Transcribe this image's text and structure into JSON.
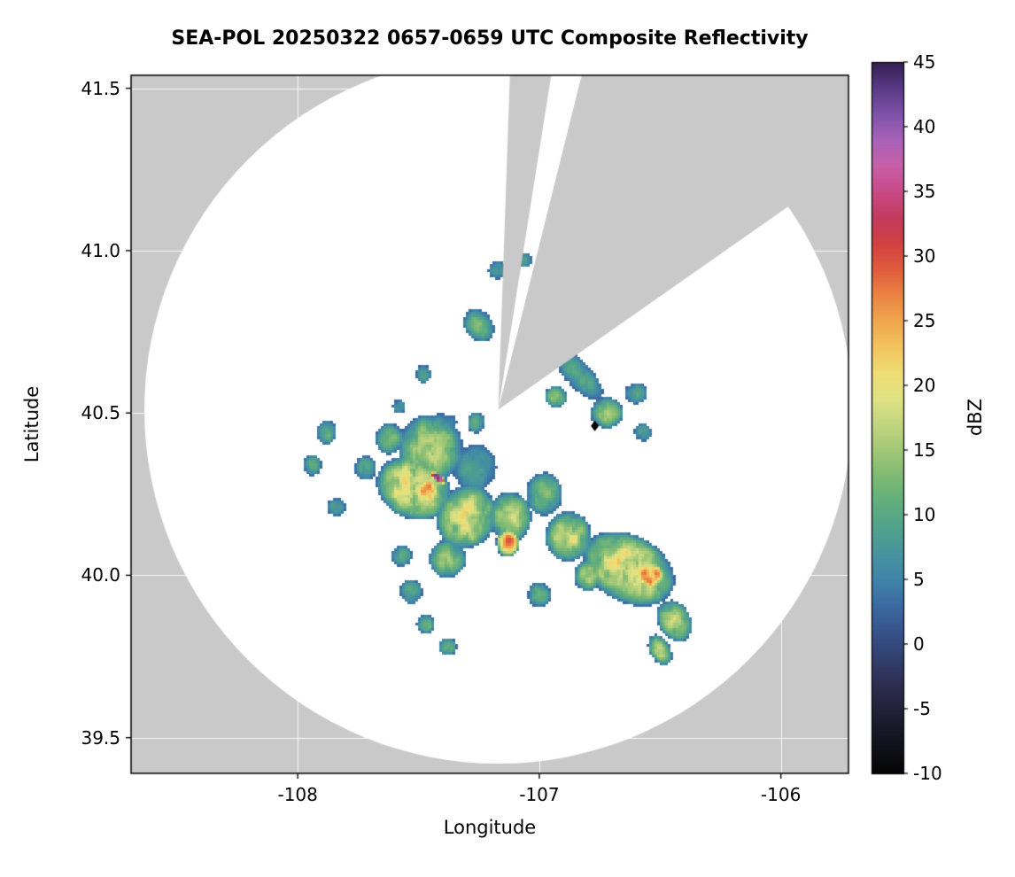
{
  "chart_data": {
    "type": "heatmap",
    "title": "SEA-POL 20250322 0657-0659 UTC Composite Reflectivity",
    "xlabel": "Longitude",
    "ylabel": "Latitude",
    "xlim": [
      -108.69,
      -105.72
    ],
    "ylim": [
      39.39,
      41.54
    ],
    "x_ticks": [
      -108,
      -107,
      -106
    ],
    "x_tick_labels": [
      "-108",
      "-107",
      "-106"
    ],
    "y_ticks": [
      39.5,
      40.0,
      40.5,
      41.0,
      41.5
    ],
    "y_tick_labels": [
      "39.5",
      "40.0",
      "40.5",
      "41.0",
      "41.5"
    ],
    "grid": true,
    "background_color": "#c9c9c9",
    "coverage_color": "#ffffff",
    "colorbar": {
      "label": "dBZ",
      "min": -10,
      "max": 45,
      "ticks": [
        -10,
        -5,
        0,
        5,
        10,
        15,
        20,
        25,
        30,
        35,
        40,
        45
      ],
      "tick_labels": [
        "-10",
        "-5",
        "0",
        "5",
        "10",
        "15",
        "20",
        "25",
        "30",
        "35",
        "40",
        "45"
      ],
      "stops": [
        [
          -10,
          "#050505"
        ],
        [
          -6,
          "#1c1b2e"
        ],
        [
          -3,
          "#2d2f52"
        ],
        [
          0,
          "#34497e"
        ],
        [
          3,
          "#3b6aa2"
        ],
        [
          5,
          "#3f84a8"
        ],
        [
          7,
          "#47949e"
        ],
        [
          9,
          "#51a28c"
        ],
        [
          11,
          "#62ae7d"
        ],
        [
          13,
          "#7fba74"
        ],
        [
          15,
          "#a2c878"
        ],
        [
          17,
          "#c2d57f"
        ],
        [
          19,
          "#e0e283"
        ],
        [
          21,
          "#efdd74"
        ],
        [
          23,
          "#f2c45e"
        ],
        [
          25,
          "#f0a64d"
        ],
        [
          27,
          "#ea8343"
        ],
        [
          29,
          "#e05c3d"
        ],
        [
          31,
          "#cf4141"
        ],
        [
          33,
          "#c23b5e"
        ],
        [
          35,
          "#c94a86"
        ],
        [
          37,
          "#c75fa8"
        ],
        [
          39,
          "#a862b8"
        ],
        [
          41,
          "#7e52a8"
        ],
        [
          43,
          "#5a3a86"
        ],
        [
          45,
          "#341f52"
        ]
      ]
    },
    "radar": {
      "center_lon": -107.17,
      "center_lat": 40.51,
      "range_lon_deg": 1.465,
      "blocked_sectors_deg": [
        [
          2,
          9
        ],
        [
          14,
          55
        ]
      ],
      "marker": {
        "lon": -106.77,
        "lat": 40.46,
        "shape": "diamond",
        "color": "#000000"
      }
    },
    "echoes": {
      "blob_format": "[lon, lat, rx_deg, ry_deg, rot_deg, peak_dbz]",
      "threshold_dbz": 2.5,
      "noise": {
        "seed": 7,
        "scale_deg": 0.035,
        "scale2_deg": 0.013,
        "base": 0.6,
        "amp": 0.8
      },
      "blobs": [
        [
          -107.45,
          40.39,
          0.14,
          0.11,
          0,
          15
        ],
        [
          -107.52,
          40.27,
          0.16,
          0.1,
          -10,
          20
        ],
        [
          -107.46,
          40.26,
          0.055,
          0.04,
          -15,
          29
        ],
        [
          -107.42,
          40.3,
          0.04,
          0.013,
          -25,
          40
        ],
        [
          -107.27,
          40.33,
          0.1,
          0.08,
          0,
          8
        ],
        [
          -107.62,
          40.42,
          0.06,
          0.05,
          0,
          12
        ],
        [
          -107.72,
          40.33,
          0.05,
          0.04,
          0,
          10
        ],
        [
          -107.3,
          40.18,
          0.13,
          0.1,
          10,
          18
        ],
        [
          -107.38,
          40.05,
          0.08,
          0.06,
          0,
          14
        ],
        [
          -107.13,
          40.1,
          0.05,
          0.045,
          0,
          28
        ],
        [
          -107.12,
          40.18,
          0.09,
          0.08,
          0,
          16
        ],
        [
          -106.98,
          40.25,
          0.08,
          0.07,
          0,
          12
        ],
        [
          -106.88,
          40.12,
          0.1,
          0.08,
          0,
          17
        ],
        [
          -106.63,
          40.02,
          0.2,
          0.11,
          -15,
          19
        ],
        [
          -106.54,
          40.0,
          0.06,
          0.045,
          0,
          27
        ],
        [
          -106.44,
          39.86,
          0.08,
          0.06,
          -30,
          16
        ],
        [
          -106.5,
          39.77,
          0.06,
          0.04,
          -40,
          14
        ],
        [
          -106.8,
          40.0,
          0.06,
          0.05,
          0,
          15
        ],
        [
          -107.0,
          39.94,
          0.05,
          0.04,
          0,
          12
        ],
        [
          -107.53,
          39.95,
          0.05,
          0.04,
          0,
          11
        ],
        [
          -107.47,
          39.85,
          0.04,
          0.03,
          0,
          12
        ],
        [
          -107.57,
          40.06,
          0.045,
          0.035,
          0,
          10
        ],
        [
          -107.88,
          40.44,
          0.045,
          0.04,
          0,
          11
        ],
        [
          -107.94,
          40.34,
          0.04,
          0.035,
          0,
          10
        ],
        [
          -107.84,
          40.21,
          0.04,
          0.03,
          0,
          9
        ],
        [
          -107.25,
          40.77,
          0.07,
          0.05,
          -20,
          11
        ],
        [
          -107.17,
          40.94,
          0.045,
          0.03,
          0,
          9
        ],
        [
          -107.06,
          40.97,
          0.035,
          0.025,
          0,
          8
        ],
        [
          -106.84,
          40.62,
          0.13,
          0.05,
          -35,
          9
        ],
        [
          -106.72,
          40.5,
          0.07,
          0.05,
          0,
          14
        ],
        [
          -106.93,
          40.55,
          0.05,
          0.035,
          0,
          13
        ],
        [
          -106.6,
          40.56,
          0.05,
          0.035,
          0,
          10
        ],
        [
          -106.57,
          40.44,
          0.04,
          0.03,
          0,
          9
        ],
        [
          -107.48,
          40.62,
          0.035,
          0.03,
          0,
          9
        ],
        [
          -107.58,
          40.52,
          0.03,
          0.025,
          0,
          8
        ],
        [
          -107.42,
          40.46,
          0.09,
          0.04,
          10,
          7
        ],
        [
          -107.26,
          40.47,
          0.04,
          0.035,
          0,
          10
        ],
        [
          -107.38,
          39.78,
          0.04,
          0.03,
          0,
          11
        ]
      ]
    }
  }
}
